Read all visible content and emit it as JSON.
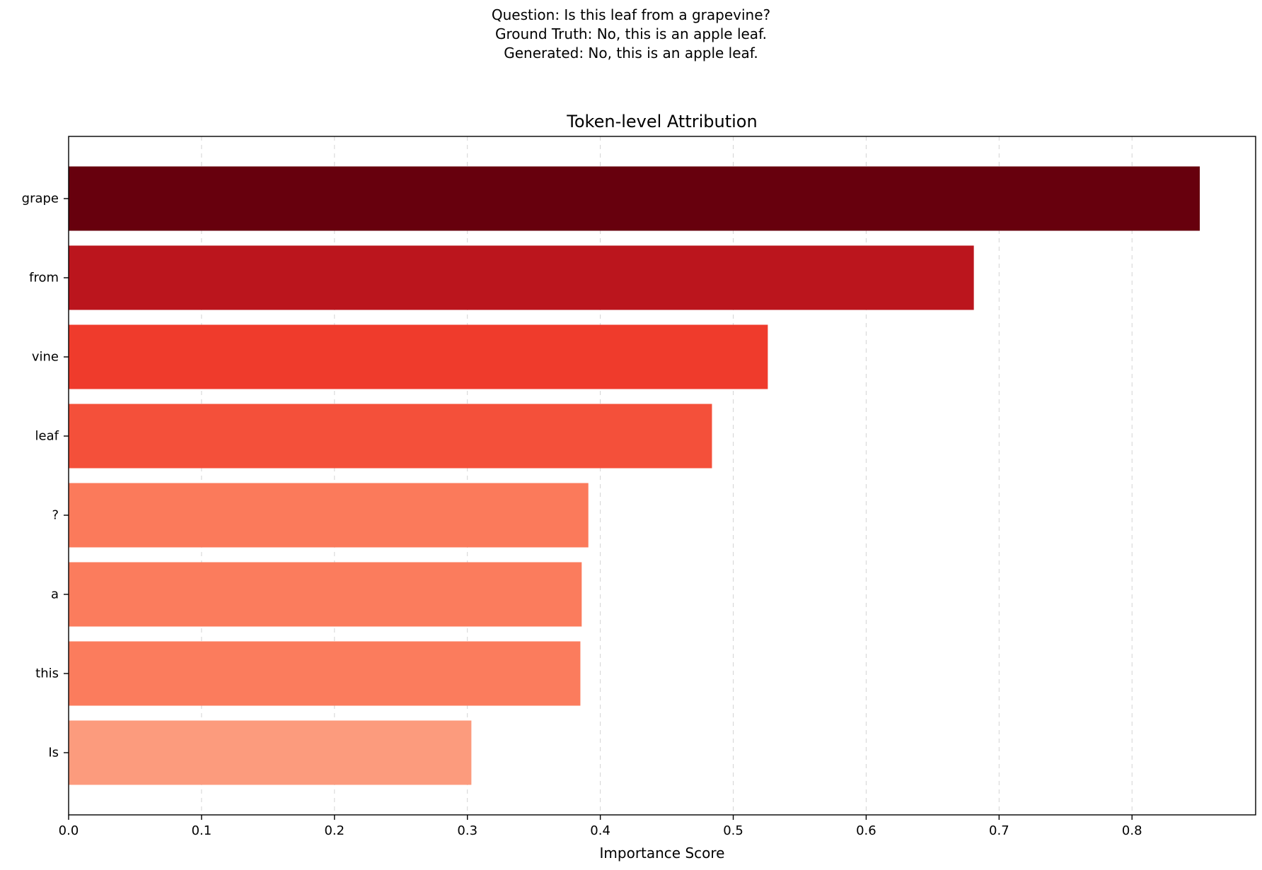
{
  "header": {
    "question": "Question: Is this leaf from a grapevine?",
    "ground_truth": "Ground Truth: No, this is an apple leaf.",
    "generated": "Generated: No, this is an apple leaf."
  },
  "chart_data": {
    "type": "bar",
    "orientation": "horizontal",
    "title": "Token-level Attribution",
    "xlabel": "Importance Score",
    "ylabel": "",
    "categories": [
      "grape",
      "from",
      "vine",
      "leaf",
      "?",
      "a",
      "this",
      "Is"
    ],
    "values": [
      0.851,
      0.681,
      0.526,
      0.484,
      0.391,
      0.386,
      0.385,
      0.303
    ],
    "colors": [
      "#67000d",
      "#bb151d",
      "#ef3b2c",
      "#f4503a",
      "#fb7a5b",
      "#fb7c5d",
      "#fb7c5d",
      "#fc9b7d"
    ],
    "xlim": [
      0,
      0.893
    ],
    "xticks": [
      0.0,
      0.1,
      0.2,
      0.3,
      0.4,
      0.5,
      0.6,
      0.7,
      0.8
    ],
    "xtick_labels": [
      "0.0",
      "0.1",
      "0.2",
      "0.3",
      "0.4",
      "0.5",
      "0.6",
      "0.7",
      "0.8"
    ],
    "grid": {
      "x": true,
      "y": false,
      "style": "dashed"
    },
    "legend": null
  }
}
